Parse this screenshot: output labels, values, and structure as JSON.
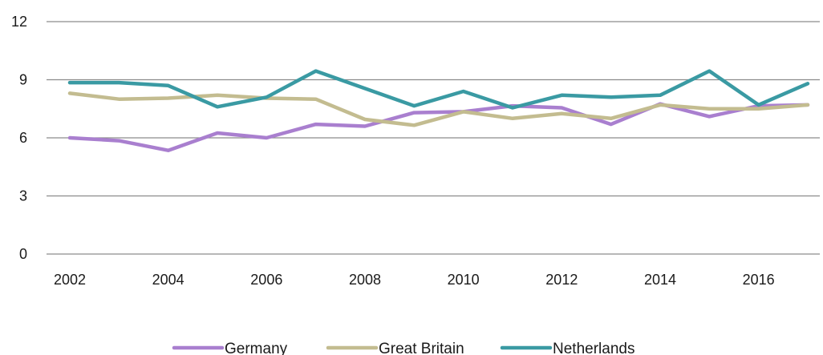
{
  "chart_data": {
    "type": "line",
    "title": "",
    "xlabel": "",
    "ylabel": "",
    "x": [
      2002,
      2003,
      2004,
      2005,
      2006,
      2007,
      2008,
      2009,
      2010,
      2011,
      2012,
      2013,
      2014,
      2015,
      2016,
      2017
    ],
    "x_ticks": [
      "2002",
      "2004",
      "2006",
      "2008",
      "2010",
      "2012",
      "2014",
      "2016"
    ],
    "ylim": [
      0,
      12
    ],
    "y_ticks": [
      "0",
      "3",
      "6",
      "9",
      "12"
    ],
    "grid": true,
    "legend_position": "bottom",
    "series": [
      {
        "name": "Germany",
        "color": "#a97fcf",
        "values": [
          6.0,
          5.85,
          5.35,
          6.25,
          6.0,
          6.7,
          6.6,
          7.3,
          7.35,
          7.65,
          7.55,
          6.7,
          7.75,
          7.1,
          7.65,
          7.7
        ]
      },
      {
        "name": "Great Britain",
        "color": "#c3bc90",
        "values": [
          8.3,
          8.0,
          8.05,
          8.2,
          8.05,
          8.0,
          6.95,
          6.65,
          7.35,
          7.0,
          7.25,
          7.0,
          7.7,
          7.5,
          7.5,
          7.7
        ]
      },
      {
        "name": "Netherlands",
        "color": "#3a9aa3",
        "values": [
          8.85,
          8.85,
          8.7,
          7.6,
          8.1,
          9.45,
          8.55,
          7.65,
          8.4,
          7.55,
          8.2,
          8.1,
          8.2,
          9.45,
          7.7,
          8.8
        ]
      }
    ]
  }
}
